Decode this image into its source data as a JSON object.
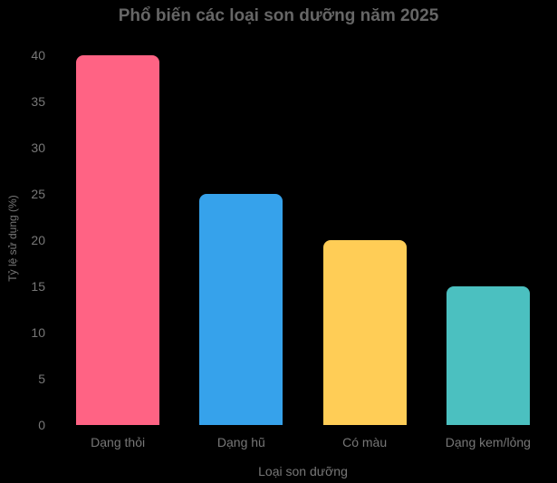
{
  "colors": {
    "background": "#000000",
    "title_text": "#666666",
    "axis_text": "#777777"
  },
  "chart_data": {
    "type": "bar",
    "title": "Phổ biến các loại son dưỡng năm 2025",
    "categories": [
      "Dạng thỏi",
      "Dạng hũ",
      "Có màu",
      "Dạng kem/lỏng"
    ],
    "values": [
      40,
      25,
      20,
      15
    ],
    "bar_colors": [
      "#FF6384",
      "#36A2EB",
      "#FFCD56",
      "#4BC0C0"
    ],
    "xlabel": "Loại son dưỡng",
    "ylabel": "Tỷ lệ sử dụng (%)",
    "ylim": [
      0,
      40
    ],
    "yticks": [
      0,
      5,
      10,
      15,
      20,
      25,
      30,
      35,
      40
    ],
    "grid": false,
    "legend": false
  }
}
